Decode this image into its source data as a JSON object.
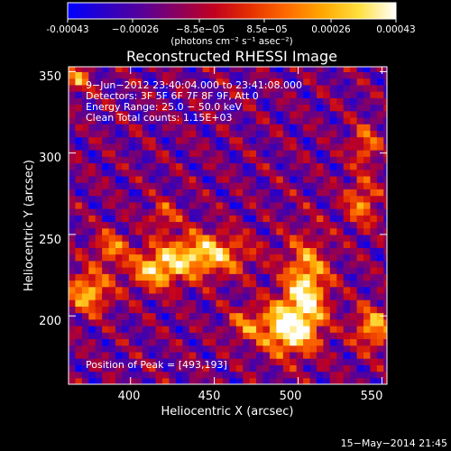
{
  "chart_data": {
    "type": "heatmap",
    "title": "Reconstructed RHESSI Image",
    "xlabel": "Heliocentric X (arcsec)",
    "ylabel": "Heliocentric Y (arcsec)",
    "xlim": [
      363,
      553
    ],
    "ylim": [
      158,
      353
    ],
    "x_ticks": [
      400,
      450,
      500,
      550
    ],
    "y_ticks": [
      200,
      250,
      300,
      350
    ],
    "x_tick_labels": [
      "400",
      "450",
      "500",
      "550"
    ],
    "y_tick_labels": [
      "200",
      "250",
      "300",
      "350"
    ],
    "colorbar": {
      "label": "(photons cm⁻² s⁻¹ asec⁻²)",
      "range": [
        -0.00043,
        0.00043
      ],
      "tick_values": [
        -0.00043,
        -0.00026,
        -8.5e-05,
        8.5e-05,
        0.00026,
        0.00043
      ],
      "tick_labels": [
        "-0.00043",
        "−0.00026",
        "−8.5e−05",
        "8.5e−05",
        "0.00026",
        "0.00043"
      ],
      "colormap": [
        "#0000ff",
        "#2a00c8",
        "#55009a",
        "#8a0060",
        "#c00020",
        "#e43000",
        "#ff6a00",
        "#ffa800",
        "#ffe040",
        "#ffffff"
      ]
    },
    "annotations": [
      "9−Jun−2012 23:40:04.000 to 23:41:08.000",
      "Detectors: 3F 5F 6F 7F 8F 9F, Att 0",
      "Energy Range: 25.0 − 50.0 keV",
      "Clean    Total counts: 1.15E+03"
    ],
    "peak_label": "Position of Peak = [493,193]",
    "peak_position": [
      493,
      193
    ],
    "sources": [
      {
        "x": 493,
        "y": 193,
        "sx": 11,
        "sy": 11,
        "amp": 1.0
      },
      {
        "x": 505,
        "y": 218,
        "sx": 9,
        "sy": 20,
        "amp": 0.85
      },
      {
        "x": 443,
        "y": 238,
        "sx": 18,
        "sy": 9,
        "amp": 0.85
      },
      {
        "x": 415,
        "y": 228,
        "sx": 11,
        "sy": 8,
        "amp": 0.7
      },
      {
        "x": 375,
        "y": 215,
        "sx": 9,
        "sy": 9,
        "amp": 0.75
      },
      {
        "x": 388,
        "y": 242,
        "sx": 7,
        "sy": 7,
        "amp": 0.55
      },
      {
        "x": 545,
        "y": 193,
        "sx": 8,
        "sy": 9,
        "amp": 0.7
      },
      {
        "x": 538,
        "y": 270,
        "sx": 7,
        "sy": 10,
        "amp": 0.55
      },
      {
        "x": 540,
        "y": 305,
        "sx": 6,
        "sy": 9,
        "amp": 0.5
      },
      {
        "x": 368,
        "y": 346,
        "sx": 5,
        "sy": 6,
        "amp": 0.6
      },
      {
        "x": 420,
        "y": 262,
        "sx": 6,
        "sy": 6,
        "amp": 0.45
      },
      {
        "x": 468,
        "y": 195,
        "sx": 7,
        "sy": 7,
        "amp": 0.45
      }
    ]
  },
  "footer": {
    "timestamp": "15−May−2014 21:45"
  }
}
